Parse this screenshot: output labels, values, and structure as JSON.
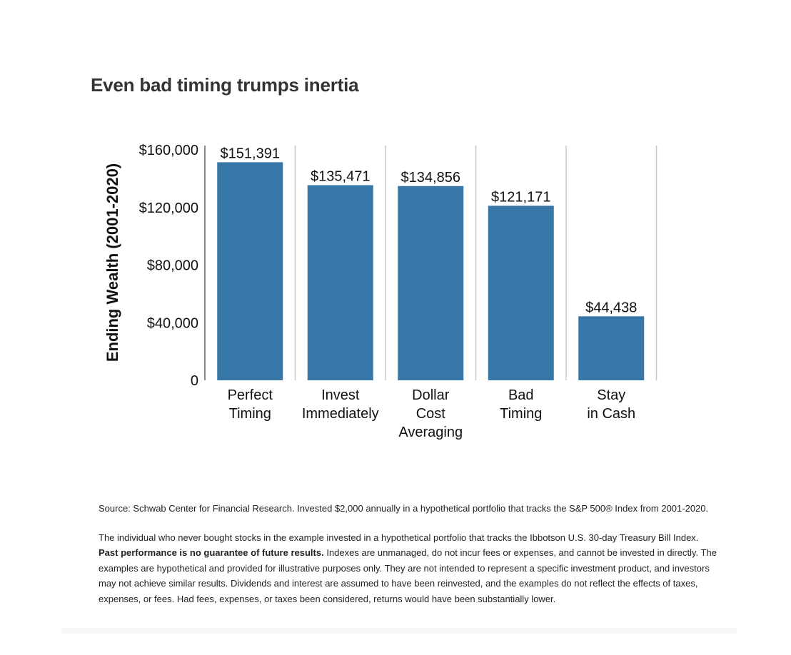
{
  "title": "Even bad timing trumps inertia",
  "chart_data": {
    "type": "bar",
    "categories": [
      [
        "Perfect",
        "Timing"
      ],
      [
        "Invest",
        "Immediately"
      ],
      [
        "Dollar",
        "Cost",
        "Averaging"
      ],
      [
        "Bad",
        "Timing"
      ],
      [
        "Stay",
        "in Cash"
      ]
    ],
    "values": [
      151391,
      135471,
      134856,
      121171,
      44438
    ],
    "value_labels": [
      "$151,391",
      "$135,471",
      "$134,856",
      "$121,171",
      "$44,438"
    ],
    "ylabel": "Ending Wealth (2001-2020)",
    "ylim": [
      0,
      160000
    ],
    "yticks": [
      0,
      40000,
      80000,
      120000,
      160000
    ],
    "ytick_labels": [
      "0",
      "$40,000",
      "$80,000",
      "$120,000",
      "$160,000"
    ],
    "bar_color": "#3878a8",
    "grid": false
  },
  "notes": {
    "source": "Source: Schwab Center for Financial Research. Invested $2,000 annually in a hypothetical portfolio that tracks the S&P 500® Index from 2001-2020.",
    "disclaimer_intro": "The individual who never bought stocks in the example invested in a hypothetical portfolio that tracks the Ibbotson U.S. 30-day Treasury Bill Index.",
    "disclaimer_bold": "Past performance is no guarantee of future results.",
    "disclaimer_rest": "Indexes are unmanaged, do not incur fees or expenses, and cannot be invested in directly. The examples are hypothetical and provided for illustrative purposes only. They are not intended to represent a specific investment product, and investors may not achieve similar results. Dividends and interest are assumed to have been reinvested, and the examples do not reflect the effects of taxes, expenses, or fees. Had fees, expenses, or taxes been considered, returns would have been substantially lower."
  }
}
